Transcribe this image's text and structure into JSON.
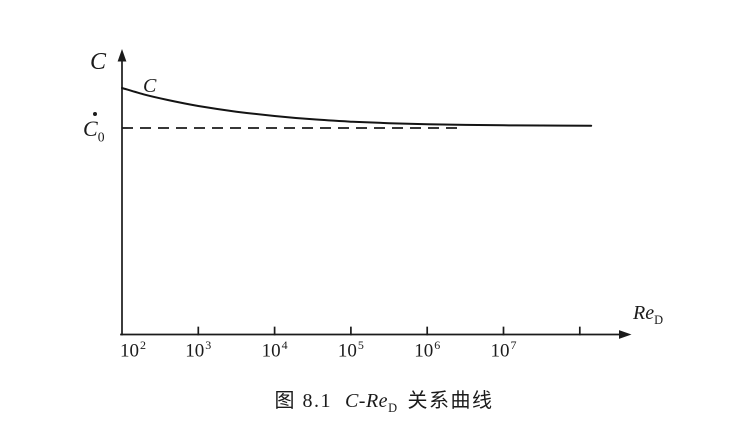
{
  "colors": {
    "ink": "#1b1b1b",
    "paper": "#ffffff"
  },
  "chart_data": {
    "type": "line",
    "title": "图 8.1 C-ReD 关系曲线",
    "xlabel": "ReD",
    "ylabel": "C",
    "x_scale": "log",
    "x_range_decades": [
      2,
      8.3
    ],
    "grid": false,
    "legend": "none",
    "y_axis": {
      "label": "C"
    },
    "x_axis": {
      "label": {
        "text": "Re",
        "sub": "D"
      },
      "ticks": [
        {
          "decade": 2,
          "base": "10",
          "exp": "2",
          "has_mark": false
        },
        {
          "decade": 3,
          "base": "10",
          "exp": "3",
          "has_mark": true
        },
        {
          "decade": 4,
          "base": "10",
          "exp": "4",
          "has_mark": true
        },
        {
          "decade": 5,
          "base": "10",
          "exp": "5",
          "has_mark": true
        },
        {
          "decade": 6,
          "base": "10",
          "exp": "6",
          "has_mark": true
        },
        {
          "decade": 7,
          "base": "10",
          "exp": "7",
          "has_mark": true
        },
        {
          "decade": 8,
          "base": "",
          "exp": "",
          "has_mark": true
        }
      ]
    },
    "asymptote": {
      "label": {
        "text": "C",
        "sub": "0"
      },
      "value_c_over_c0": 1.0,
      "style": "dashed"
    },
    "series": [
      {
        "name": "C",
        "label": "C",
        "points": [
          {
            "x_decade": 2.0,
            "c_over_c0": 1.6
          },
          {
            "x_decade": 2.3,
            "c_over_c0": 1.5
          },
          {
            "x_decade": 2.6,
            "c_over_c0": 1.42
          },
          {
            "x_decade": 3.0,
            "c_over_c0": 1.33
          },
          {
            "x_decade": 3.5,
            "c_over_c0": 1.245
          },
          {
            "x_decade": 4.0,
            "c_over_c0": 1.18
          },
          {
            "x_decade": 4.5,
            "c_over_c0": 1.13
          },
          {
            "x_decade": 5.0,
            "c_over_c0": 1.095
          },
          {
            "x_decade": 5.5,
            "c_over_c0": 1.072
          },
          {
            "x_decade": 6.0,
            "c_over_c0": 1.056
          },
          {
            "x_decade": 6.5,
            "c_over_c0": 1.046
          },
          {
            "x_decade": 7.0,
            "c_over_c0": 1.04
          },
          {
            "x_decade": 7.5,
            "c_over_c0": 1.037
          },
          {
            "x_decade": 8.15,
            "c_over_c0": 1.035
          }
        ]
      }
    ],
    "caption": {
      "fig_label": "图 8.1",
      "formula": "C-Re",
      "formula_sub": "D",
      "suffix": "关系曲线"
    }
  }
}
